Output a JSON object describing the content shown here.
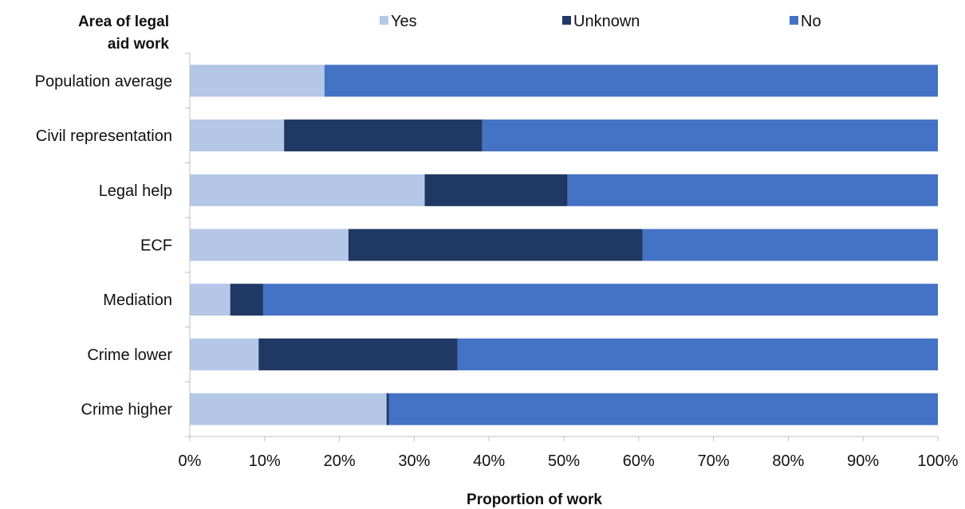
{
  "chart_data": {
    "type": "bar",
    "orientation": "horizontal",
    "stacked": true,
    "y_axis_title": [
      "Area of legal",
      "aid work"
    ],
    "xlabel": "Proportion of work",
    "categories": [
      "Population average",
      "Civil representation",
      "Legal help",
      "ECF",
      "Mediation",
      "Crime lower",
      "Crime higher"
    ],
    "series": [
      {
        "name": "Yes",
        "color": "#b4c7e7",
        "values": [
          18,
          12.6,
          31.4,
          21.2,
          5.4,
          9.2,
          26.3
        ]
      },
      {
        "name": "Unknown",
        "color": "#203864",
        "values": [
          0,
          26.5,
          19.1,
          39.3,
          4.4,
          26.6,
          0.3
        ]
      },
      {
        "name": "No",
        "color": "#4472c4",
        "values": [
          82,
          60.9,
          49.5,
          39.5,
          90.2,
          64.2,
          73.4
        ]
      }
    ],
    "xlim": [
      0,
      100
    ],
    "x_ticks": [
      "0%",
      "10%",
      "20%",
      "30%",
      "40%",
      "50%",
      "60%",
      "70%",
      "80%",
      "90%",
      "100%"
    ],
    "grid": false,
    "legend_position": "top"
  }
}
